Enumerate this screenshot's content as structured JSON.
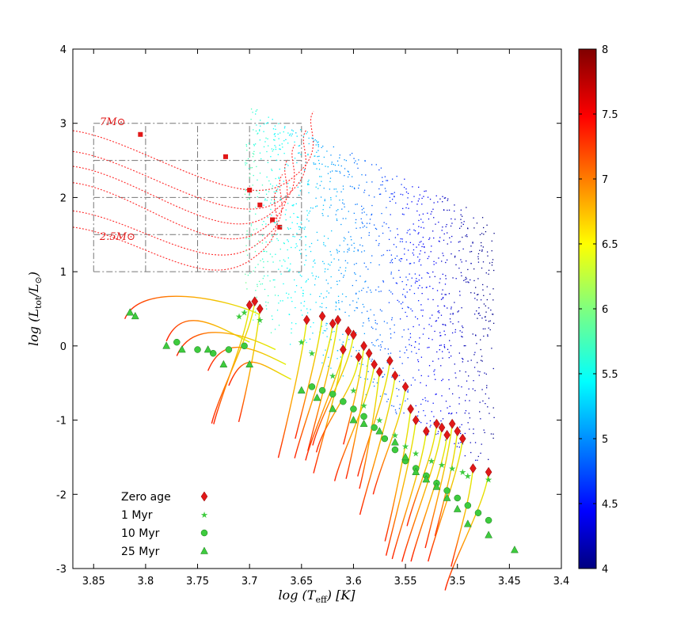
{
  "chart_data": {
    "type": "scatter",
    "title": "",
    "xlabel": "log (T_eff) [K]",
    "ylabel": "log (L_tot/L_⊙)",
    "xlim": [
      3.87,
      3.4
    ],
    "ylim": [
      -3,
      4
    ],
    "x_reversed": true,
    "grid": false,
    "x_ticks": [
      "3.85",
      "3.8",
      "3.75",
      "3.7",
      "3.65",
      "3.6",
      "3.55",
      "3.5",
      "3.45",
      "3.4"
    ],
    "y_ticks": [
      "4",
      "3",
      "2",
      "1",
      "0",
      "-1",
      "-2",
      "-3"
    ],
    "colorbar": {
      "range": [
        4,
        8
      ],
      "ticks": [
        "4",
        "4.5",
        "5",
        "5.5",
        "6",
        "6.5",
        "7",
        "7.5",
        "8"
      ],
      "colormap": "jet"
    },
    "legend": {
      "placement": "bottom-left",
      "entries": [
        {
          "label": "Zero age",
          "marker": "diamond",
          "color": "#e11818"
        },
        {
          "label": "1  Myr",
          "marker": "star",
          "color": "#3ecb3e"
        },
        {
          "label": "10 Myr",
          "marker": "circle",
          "color": "#3ecb3e"
        },
        {
          "label": "25 Myr",
          "marker": "triangle",
          "color": "#3ecb3e"
        }
      ]
    },
    "annotations": [
      {
        "text": "7M_⊙",
        "x": 3.845,
        "y": 3.0
      },
      {
        "text": "2.5M_⊙",
        "x": 3.845,
        "y": 1.45
      }
    ],
    "inset_grid": {
      "x_edges": [
        3.85,
        3.8,
        3.75,
        3.7,
        3.65
      ],
      "y_edges": [
        1.0,
        1.5,
        2.0,
        2.5,
        3.0
      ],
      "style": "dash-dot",
      "color": "#777777"
    },
    "massive_tracks": [
      {
        "x0": 3.87,
        "y0": 2.9,
        "x1": 3.665,
        "y1": 2.2,
        "marker": [
          3.805,
          2.85
        ]
      },
      {
        "x0": 3.87,
        "y0": 2.62,
        "x1": 3.672,
        "y1": 1.95,
        "marker": [
          3.723,
          2.55
        ]
      },
      {
        "x0": 3.87,
        "y0": 2.42,
        "x1": 3.683,
        "y1": 1.75,
        "marker": [
          3.7,
          2.1
        ]
      },
      {
        "x0": 3.87,
        "y0": 2.2,
        "x1": 3.69,
        "y1": 1.55,
        "marker": [
          3.69,
          1.9
        ]
      },
      {
        "x0": 3.87,
        "y0": 1.82,
        "x1": 3.695,
        "y1": 1.35,
        "marker": [
          3.678,
          1.7
        ]
      },
      {
        "x0": 3.87,
        "y0": 1.6,
        "x1": 3.7,
        "y1": 1.15,
        "marker": [
          3.671,
          1.6
        ]
      }
    ],
    "series": [
      {
        "name": "Zero age",
        "x": [
          3.7,
          3.695,
          3.69,
          3.645,
          3.63,
          3.62,
          3.615,
          3.605,
          3.6,
          3.59,
          3.585,
          3.575,
          3.565,
          3.56,
          3.55,
          3.545,
          3.54,
          3.53,
          3.52,
          3.515,
          3.51,
          3.505,
          3.5,
          3.495,
          3.485,
          3.47,
          3.61,
          3.595,
          3.58
        ],
        "y": [
          0.55,
          0.6,
          0.5,
          0.35,
          0.4,
          0.3,
          0.35,
          0.2,
          0.15,
          0.0,
          -0.1,
          -0.35,
          -0.2,
          -0.4,
          -0.55,
          -0.85,
          -1.0,
          -1.15,
          -1.05,
          -1.1,
          -1.2,
          -1.05,
          -1.15,
          -1.25,
          -1.65,
          -1.7,
          -0.05,
          -0.15,
          -0.25
        ]
      },
      {
        "name": "1  Myr",
        "x": [
          3.705,
          3.71,
          3.69,
          3.65,
          3.64,
          3.62,
          3.6,
          3.59,
          3.575,
          3.56,
          3.55,
          3.54,
          3.525,
          3.515,
          3.505,
          3.495,
          3.49,
          3.47
        ],
        "y": [
          0.45,
          0.4,
          0.35,
          0.05,
          -0.1,
          -0.4,
          -0.6,
          -0.8,
          -1.0,
          -1.2,
          -1.35,
          -1.45,
          -1.55,
          -1.6,
          -1.65,
          -1.7,
          -1.75,
          -1.8
        ]
      },
      {
        "name": "10 Myr",
        "x": [
          3.77,
          3.75,
          3.735,
          3.72,
          3.705,
          3.64,
          3.63,
          3.62,
          3.61,
          3.6,
          3.59,
          3.58,
          3.57,
          3.56,
          3.55,
          3.54,
          3.53,
          3.52,
          3.51,
          3.5,
          3.49,
          3.48,
          3.47
        ],
        "y": [
          0.05,
          -0.05,
          -0.1,
          -0.05,
          0.0,
          -0.55,
          -0.6,
          -0.65,
          -0.75,
          -0.85,
          -0.95,
          -1.1,
          -1.25,
          -1.4,
          -1.55,
          -1.65,
          -1.75,
          -1.85,
          -1.95,
          -2.05,
          -2.15,
          -2.25,
          -2.35
        ]
      },
      {
        "name": "25 Myr",
        "x": [
          3.815,
          3.81,
          3.78,
          3.765,
          3.74,
          3.725,
          3.7,
          3.65,
          3.635,
          3.62,
          3.6,
          3.59,
          3.575,
          3.56,
          3.55,
          3.54,
          3.53,
          3.52,
          3.51,
          3.5,
          3.49,
          3.47,
          3.445
        ],
        "y": [
          0.45,
          0.4,
          0.0,
          -0.05,
          -0.05,
          -0.25,
          -0.25,
          -0.6,
          -0.7,
          -0.85,
          -1.0,
          -1.05,
          -1.15,
          -1.3,
          -1.5,
          -1.7,
          -1.8,
          -1.9,
          -2.05,
          -2.2,
          -2.4,
          -2.55,
          -2.75
        ]
      }
    ]
  }
}
